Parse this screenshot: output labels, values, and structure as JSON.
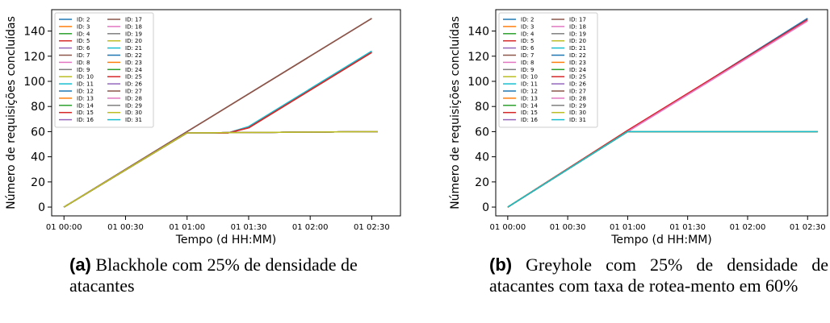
{
  "colors": [
    "#1f77b4",
    "#ff7f0e",
    "#2ca02c",
    "#d62728",
    "#9467bd",
    "#8c564b",
    "#e377c2",
    "#7f7f7f",
    "#bcbd22",
    "#17becf"
  ],
  "captions": {
    "a": {
      "label": "(a)",
      "text": "Blackhole com 25% de densidade de atacantes"
    },
    "b": {
      "label": "(b)",
      "text": "Greyhole com 25% de densidade de atacantes com taxa de rotea-mento em 60%"
    }
  },
  "chart_data": [
    {
      "type": "line",
      "xlabel": "Tempo (d HH:MM)",
      "ylabel": "Número de requisições concluídas",
      "x_ticks": [
        "01 00:00",
        "01 00:30",
        "01 01:00",
        "01 01:30",
        "01 02:00",
        "01 02:30"
      ],
      "x_tick_minutes": [
        0,
        30,
        60,
        90,
        120,
        150
      ],
      "xlim_minutes": [
        -6,
        164
      ],
      "y_ticks": [
        0,
        20,
        40,
        60,
        80,
        100,
        120,
        140
      ],
      "ylim": [
        -7,
        157
      ],
      "legend_position": "top-left",
      "legend_labels": [
        "ID: 2",
        "ID: 3",
        "ID: 4",
        "ID: 5",
        "ID: 6",
        "ID: 7",
        "ID: 8",
        "ID: 9",
        "ID: 10",
        "ID: 11",
        "ID: 12",
        "ID: 13",
        "ID: 14",
        "ID: 15",
        "ID: 16",
        "ID: 17",
        "ID: 18",
        "ID: 19",
        "ID: 20",
        "ID: 21",
        "ID: 22",
        "ID: 23",
        "ID: 24",
        "ID: 25",
        "ID: 26",
        "ID: 27",
        "ID: 28",
        "ID: 29",
        "ID: 30",
        "ID: 31"
      ],
      "groups": [
        {
          "ids": [
            "ID: 7",
            "ID: 17",
            "ID: 27"
          ],
          "x_minutes": [
            0,
            60,
            150
          ],
          "y": [
            0,
            60,
            150
          ]
        },
        {
          "ids": [
            "ID: 11",
            "ID: 21",
            "ID: 31"
          ],
          "x_minutes": [
            0,
            60,
            80,
            90,
            150
          ],
          "y": [
            0,
            59,
            59,
            64,
            124
          ]
        },
        {
          "ids": [
            "ID: 5",
            "ID: 15",
            "ID: 25"
          ],
          "x_minutes": [
            0,
            60,
            80,
            90,
            150
          ],
          "y": [
            0,
            59,
            59,
            63,
            123
          ]
        },
        {
          "ids": [
            "ID: 2",
            "ID: 3",
            "ID: 4",
            "ID: 6",
            "ID: 8",
            "ID: 9",
            "ID: 10",
            "ID: 12",
            "ID: 13",
            "ID: 14",
            "ID: 16",
            "ID: 18",
            "ID: 19",
            "ID: 20",
            "ID: 22",
            "ID: 23",
            "ID: 24",
            "ID: 26",
            "ID: 28",
            "ID: 29",
            "ID: 30"
          ],
          "x_minutes": [
            0,
            60,
            153
          ],
          "y": [
            0,
            59,
            60
          ]
        }
      ]
    },
    {
      "type": "line",
      "xlabel": "Tempo (d HH:MM)",
      "ylabel": "Número de requisições concluídas",
      "x_ticks": [
        "01 00:00",
        "01 00:30",
        "01 01:00",
        "01 01:30",
        "01 02:00",
        "01 02:30"
      ],
      "x_tick_minutes": [
        0,
        30,
        60,
        90,
        120,
        150
      ],
      "xlim_minutes": [
        -6,
        160
      ],
      "y_ticks": [
        0,
        20,
        40,
        60,
        80,
        100,
        120,
        140
      ],
      "ylim": [
        -7,
        157
      ],
      "legend_position": "top-left",
      "legend_labels": [
        "ID: 2",
        "ID: 3",
        "ID: 4",
        "ID: 5",
        "ID: 6",
        "ID: 7",
        "ID: 8",
        "ID: 9",
        "ID: 10",
        "ID: 11",
        "ID: 12",
        "ID: 13",
        "ID: 14",
        "ID: 15",
        "ID: 16",
        "ID: 17",
        "ID: 18",
        "ID: 19",
        "ID: 20",
        "ID: 21",
        "ID: 22",
        "ID: 23",
        "ID: 24",
        "ID: 25",
        "ID: 26",
        "ID: 27",
        "ID: 28",
        "ID: 29",
        "ID: 30",
        "ID: 31"
      ],
      "groups": [
        {
          "ids": [
            "ID: 2",
            "ID: 12",
            "ID: 22"
          ],
          "x_minutes": [
            0,
            60,
            150
          ],
          "y": [
            0,
            60,
            150
          ]
        },
        {
          "ids": [
            "ID: 5",
            "ID: 15",
            "ID: 25"
          ],
          "x_minutes": [
            0,
            60,
            150
          ],
          "y": [
            0,
            61,
            149
          ]
        },
        {
          "ids": [
            "ID: 8",
            "ID: 18",
            "ID: 28"
          ],
          "x_minutes": [
            0,
            60,
            150
          ],
          "y": [
            0,
            60,
            148
          ]
        },
        {
          "ids": [
            "ID: 3",
            "ID: 4",
            "ID: 6",
            "ID: 7",
            "ID: 9",
            "ID: 10",
            "ID: 11",
            "ID: 13",
            "ID: 14",
            "ID: 16",
            "ID: 17",
            "ID: 19",
            "ID: 20",
            "ID: 21",
            "ID: 23",
            "ID: 24",
            "ID: 26",
            "ID: 27",
            "ID: 29",
            "ID: 30",
            "ID: 31"
          ],
          "x_minutes": [
            0,
            60,
            155
          ],
          "y": [
            0,
            60,
            60
          ]
        }
      ]
    }
  ]
}
